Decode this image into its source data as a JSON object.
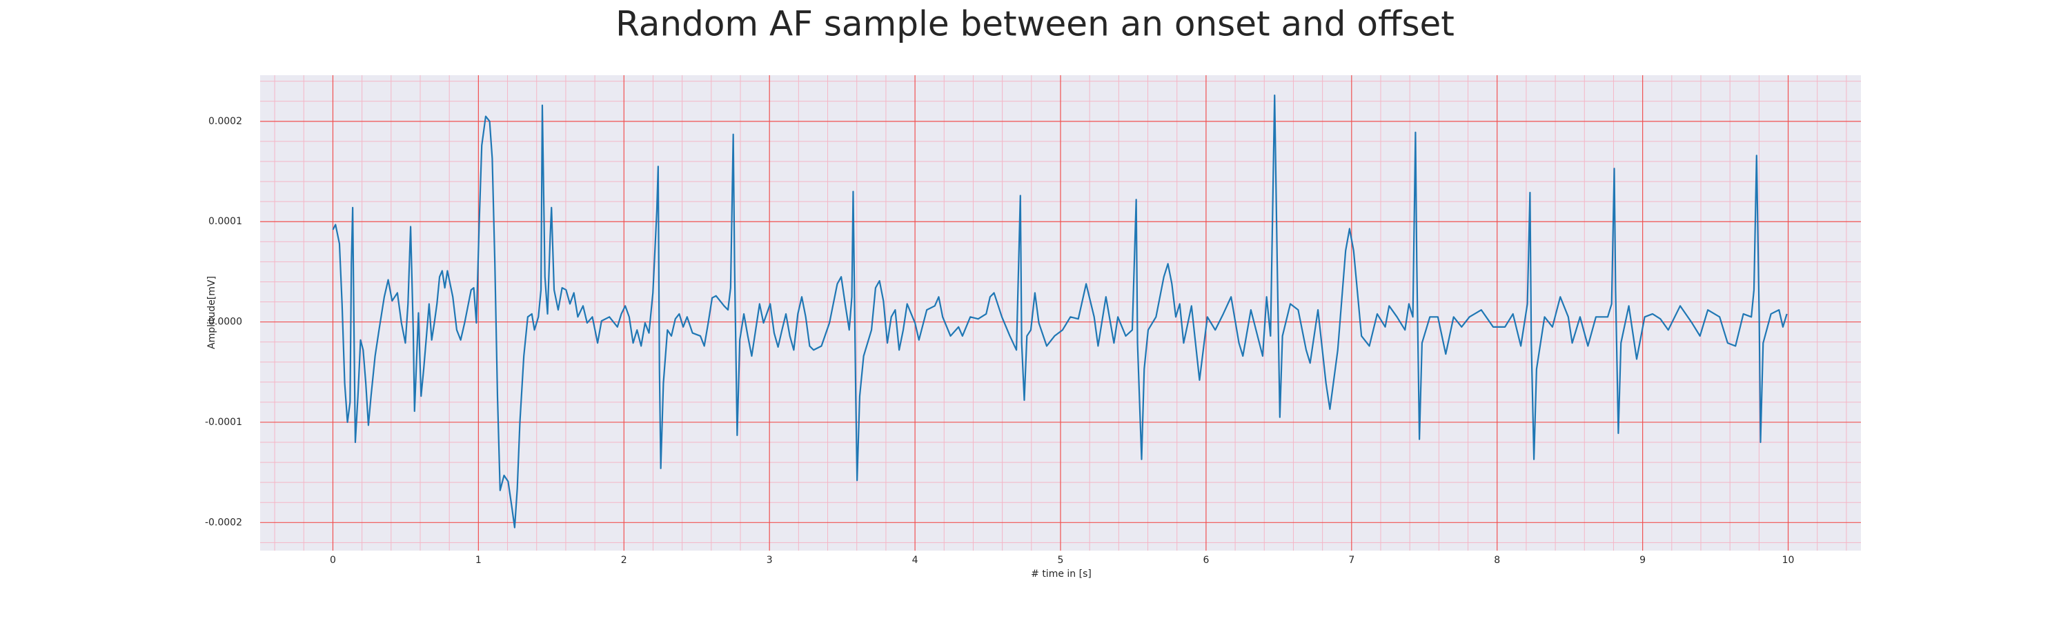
{
  "chart_data": {
    "type": "line",
    "title": "Random AF sample between an onset and offset",
    "xlabel": "# time in [s]",
    "ylabel": "Amplitude[mV]",
    "color": "#1f77b4",
    "xlim": [
      -0.5,
      10.5
    ],
    "ylim": [
      -0.000228,
      0.000246
    ],
    "xticks": [
      0,
      1,
      2,
      3,
      4,
      5,
      6,
      7,
      8,
      9,
      10
    ],
    "yticks": [
      -0.0002,
      -0.0001,
      {
        "value": 0,
        "label": "0.0000"
      },
      0.0001,
      0.0002
    ],
    "xticks_minor": [
      -0.4,
      -0.2,
      0.2,
      0.4,
      0.6,
      0.8,
      1.2,
      1.4,
      1.6,
      1.8,
      2.2,
      2.4,
      2.6,
      2.8,
      3.2,
      3.4,
      3.6,
      3.8,
      4.2,
      4.4,
      4.6,
      4.8,
      5.2,
      5.4,
      5.6,
      5.8,
      6.2,
      6.4,
      6.6,
      6.8,
      7.2,
      7.4,
      7.6,
      7.8,
      8.2,
      8.4,
      8.6,
      8.8,
      9.2,
      9.4,
      9.6,
      9.8,
      10.2,
      10.4
    ],
    "yticks_minor": [
      -0.00022,
      -0.00018,
      -0.00016,
      -0.00014,
      -0.00012,
      -8e-05,
      -6e-05,
      -4e-05,
      -2e-05,
      2e-05,
      4e-05,
      6e-05,
      8e-05,
      0.00012,
      0.00014,
      0.00016,
      0.00018,
      0.00022,
      0.00024
    ],
    "grid": true,
    "minor_grid": true,
    "x": [
      0,
      0.018,
      0.045,
      0.063,
      0.081,
      0.1,
      0.118,
      0.127,
      0.136,
      0.145,
      0.154,
      0.172,
      0.19,
      0.208,
      0.226,
      0.244,
      0.262,
      0.29,
      0.317,
      0.353,
      0.38,
      0.407,
      0.443,
      0.471,
      0.498,
      0.516,
      0.534,
      0.552,
      0.561,
      0.588,
      0.606,
      0.624,
      0.643,
      0.661,
      0.679,
      0.697,
      0.715,
      0.733,
      0.751,
      0.769,
      0.787,
      0.824,
      0.851,
      0.878,
      0.905,
      0.95,
      0.968,
      0.986,
      1.005,
      1.023,
      1.05,
      1.077,
      1.095,
      1.113,
      1.131,
      1.149,
      1.176,
      1.204,
      1.231,
      1.249,
      1.267,
      1.285,
      1.312,
      1.339,
      1.367,
      1.385,
      1.412,
      1.43,
      1.439,
      1.457,
      1.475,
      1.493,
      1.502,
      1.52,
      1.548,
      1.575,
      1.602,
      1.629,
      1.656,
      1.683,
      1.719,
      1.747,
      1.783,
      1.819,
      1.846,
      1.9,
      1.955,
      1.982,
      2.009,
      2.036,
      2.063,
      2.09,
      2.118,
      2.145,
      2.172,
      2.199,
      2.226,
      2.235,
      2.244,
      2.253,
      2.271,
      2.299,
      2.326,
      2.353,
      2.38,
      2.407,
      2.434,
      2.471,
      2.525,
      2.552,
      2.579,
      2.606,
      2.633,
      2.688,
      2.715,
      2.733,
      2.751,
      2.76,
      2.778,
      2.796,
      2.824,
      2.851,
      2.878,
      2.905,
      2.932,
      2.959,
      3.005,
      3.032,
      3.059,
      3.086,
      3.113,
      3.14,
      3.167,
      3.195,
      3.222,
      3.249,
      3.276,
      3.303,
      3.357,
      3.412,
      3.466,
      3.493,
      3.52,
      3.548,
      3.566,
      3.575,
      3.593,
      3.602,
      3.62,
      3.647,
      3.701,
      3.729,
      3.756,
      3.783,
      3.81,
      3.837,
      3.864,
      3.891,
      3.919,
      3.946,
      4.0,
      4.027,
      4.081,
      4.136,
      4.163,
      4.19,
      4.244,
      4.299,
      4.326,
      4.38,
      4.434,
      4.489,
      4.516,
      4.543,
      4.597,
      4.652,
      4.697,
      4.724,
      4.733,
      4.751,
      4.769,
      4.796,
      4.824,
      4.851,
      4.905,
      4.959,
      5.014,
      5.068,
      5.122,
      5.176,
      5.231,
      5.258,
      5.312,
      5.367,
      5.394,
      5.448,
      5.493,
      5.52,
      5.529,
      5.557,
      5.575,
      5.602,
      5.656,
      5.71,
      5.738,
      5.765,
      5.792,
      5.819,
      5.846,
      5.9,
      5.955,
      6.009,
      6.063,
      6.118,
      6.172,
      6.226,
      6.253,
      6.308,
      6.389,
      6.416,
      6.443,
      6.471,
      6.489,
      6.507,
      6.525,
      6.579,
      6.633,
      6.688,
      6.715,
      6.769,
      6.824,
      6.851,
      6.905,
      6.959,
      6.986,
      7.014,
      7.068,
      7.122,
      7.176,
      7.231,
      7.258,
      7.312,
      7.367,
      7.394,
      7.421,
      7.439,
      7.448,
      7.466,
      7.484,
      7.538,
      7.593,
      7.647,
      7.701,
      7.756,
      7.81,
      7.891,
      7.973,
      8.054,
      8.109,
      8.163,
      8.208,
      8.226,
      8.235,
      8.253,
      8.271,
      8.326,
      8.38,
      8.434,
      8.489,
      8.516,
      8.57,
      8.624,
      8.679,
      8.76,
      8.787,
      8.805,
      8.814,
      8.833,
      8.851,
      8.905,
      8.959,
      9.014,
      9.068,
      9.122,
      9.176,
      9.258,
      9.339,
      9.394,
      9.448,
      9.529,
      9.584,
      9.638,
      9.692,
      9.747,
      9.765,
      9.783,
      9.801,
      9.81,
      9.828,
      9.882,
      9.937,
      9.964,
      9.991
    ],
    "values": [
      9.2e-05,
      9.7e-05,
      7.8e-05,
      1.8e-05,
      -6.1e-05,
      -0.0001,
      -8e-05,
      5.8e-05,
      0.000114,
      -8e-06,
      -0.00012,
      -7.4e-05,
      -1.8e-05,
      -2.8e-05,
      -6.1e-05,
      -0.000103,
      -7.4e-05,
      -3.4e-05,
      -8e-06,
      2.5e-05,
      4.2e-05,
      2.1e-05,
      2.9e-05,
      -1e-06,
      -2.1e-05,
      1.8e-05,
      9.5e-05,
      -8e-06,
      -8.9e-05,
      9e-06,
      -7.4e-05,
      -4.7e-05,
      -1.4e-05,
      1.8e-05,
      -1.8e-05,
      -1e-06,
      1.8e-05,
      4.5e-05,
      5.1e-05,
      3.4e-05,
      5.1e-05,
      2.5e-05,
      -8e-06,
      -1.8e-05,
      -1e-06,
      3.2e-05,
      3.4e-05,
      -1e-06,
      9.7e-05,
      0.000176,
      0.000205,
      0.0002,
      0.000163,
      5.8e-05,
      -7.4e-05,
      -0.000168,
      -0.000153,
      -0.000159,
      -0.000186,
      -0.000205,
      -0.000166,
      -0.0001,
      -3.4e-05,
      5e-06,
      8e-06,
      -8e-06,
      5e-06,
      3.2e-05,
      0.000216,
      4.5e-05,
      8e-06,
      8.4e-05,
      0.000114,
      3.2e-05,
      1.2e-05,
      3.4e-05,
      3.2e-05,
      1.8e-05,
      2.9e-05,
      5e-06,
      1.6e-05,
      -1e-06,
      5e-06,
      -2.1e-05,
      1e-06,
      5e-06,
      -5e-06,
      8e-06,
      1.6e-05,
      5e-06,
      -2.1e-05,
      -8e-06,
      -2.4e-05,
      -1e-06,
      -1.1e-05,
      2.9e-05,
      0.000111,
      0.000155,
      -4.7e-05,
      -0.000146,
      -6.1e-05,
      -8e-06,
      -1.4e-05,
      3e-06,
      8e-06,
      -5e-06,
      5e-06,
      -1.1e-05,
      -1.4e-05,
      -2.4e-05,
      -1e-06,
      2.4e-05,
      2.6e-05,
      1.6e-05,
      1.2e-05,
      3.4e-05,
      0.000187,
      5.8e-05,
      -0.000113,
      -1.8e-05,
      8e-06,
      -1.4e-05,
      -3.4e-05,
      -8e-06,
      1.8e-05,
      -1e-06,
      1.8e-05,
      -1.1e-05,
      -2.5e-05,
      -8e-06,
      8e-06,
      -1.4e-05,
      -2.8e-05,
      8e-06,
      2.5e-05,
      5e-06,
      -2.4e-05,
      -2.8e-05,
      -2.4e-05,
      -1e-06,
      3.8e-05,
      4.5e-05,
      1.8e-05,
      -8e-06,
      2.5e-05,
      0.00013,
      -7.4e-05,
      -0.000158,
      -7.4e-05,
      -3.4e-05,
      -8e-06,
      3.4e-05,
      4.1e-05,
      2.1e-05,
      -2.1e-05,
      5e-06,
      1.2e-05,
      -2.8e-05,
      -8e-06,
      1.8e-05,
      -1e-06,
      -1.8e-05,
      1.2e-05,
      1.6e-05,
      2.5e-05,
      5e-06,
      -1.4e-05,
      -5e-06,
      -1.4e-05,
      5e-06,
      3e-06,
      8e-06,
      2.5e-05,
      2.9e-05,
      5e-06,
      -1.4e-05,
      -2.8e-05,
      0.000126,
      -2.1e-05,
      -7.8e-05,
      -1.4e-05,
      -8e-06,
      2.9e-05,
      -1e-06,
      -2.4e-05,
      -1.4e-05,
      -8e-06,
      5e-06,
      3e-06,
      3.8e-05,
      5e-06,
      -2.4e-05,
      2.5e-05,
      -2.1e-05,
      5e-06,
      -1.4e-05,
      -8e-06,
      0.000122,
      -2.1e-05,
      -0.000137,
      -4.7e-05,
      -8e-06,
      5e-06,
      4.5e-05,
      5.8e-05,
      3.8e-05,
      5e-06,
      1.8e-05,
      -2.1e-05,
      1.6e-05,
      -5.8e-05,
      5e-06,
      -8e-06,
      8e-06,
      2.5e-05,
      -2.1e-05,
      -3.4e-05,
      1.2e-05,
      -3.4e-05,
      2.5e-05,
      -1.4e-05,
      0.000226,
      5.8e-05,
      -9.5e-05,
      -1.4e-05,
      1.8e-05,
      1.2e-05,
      -2.8e-05,
      -4.1e-05,
      1.2e-05,
      -6.1e-05,
      -8.7e-05,
      -2.8e-05,
      7.1e-05,
      9.3e-05,
      7.1e-05,
      -1.4e-05,
      -2.4e-05,
      8e-06,
      -5e-06,
      1.6e-05,
      5e-06,
      -8e-06,
      1.8e-05,
      5e-06,
      0.000189,
      5.8e-05,
      -0.000117,
      -2.1e-05,
      5e-06,
      5e-06,
      -3.2e-05,
      5e-06,
      -5e-06,
      5e-06,
      1.2e-05,
      -5e-06,
      -5e-06,
      8e-06,
      -2.4e-05,
      1.8e-05,
      0.000129,
      -2.1e-05,
      -0.000137,
      -4.7e-05,
      5e-06,
      -5e-06,
      2.5e-05,
      5e-06,
      -2.1e-05,
      5e-06,
      -2.4e-05,
      5e-06,
      5e-06,
      1.8e-05,
      0.000153,
      3.2e-05,
      -0.000111,
      -2.1e-05,
      1.6e-05,
      -3.7e-05,
      5e-06,
      8e-06,
      3e-06,
      -8e-06,
      1.6e-05,
      -1e-06,
      -1.4e-05,
      1.2e-05,
      5e-06,
      -2.1e-05,
      -2.4e-05,
      8e-06,
      5e-06,
      3.2e-05,
      0.000166,
      5e-06,
      -0.00012,
      -2.1e-05,
      8e-06,
      1.2e-05,
      -5e-06,
      8e-06
    ]
  }
}
